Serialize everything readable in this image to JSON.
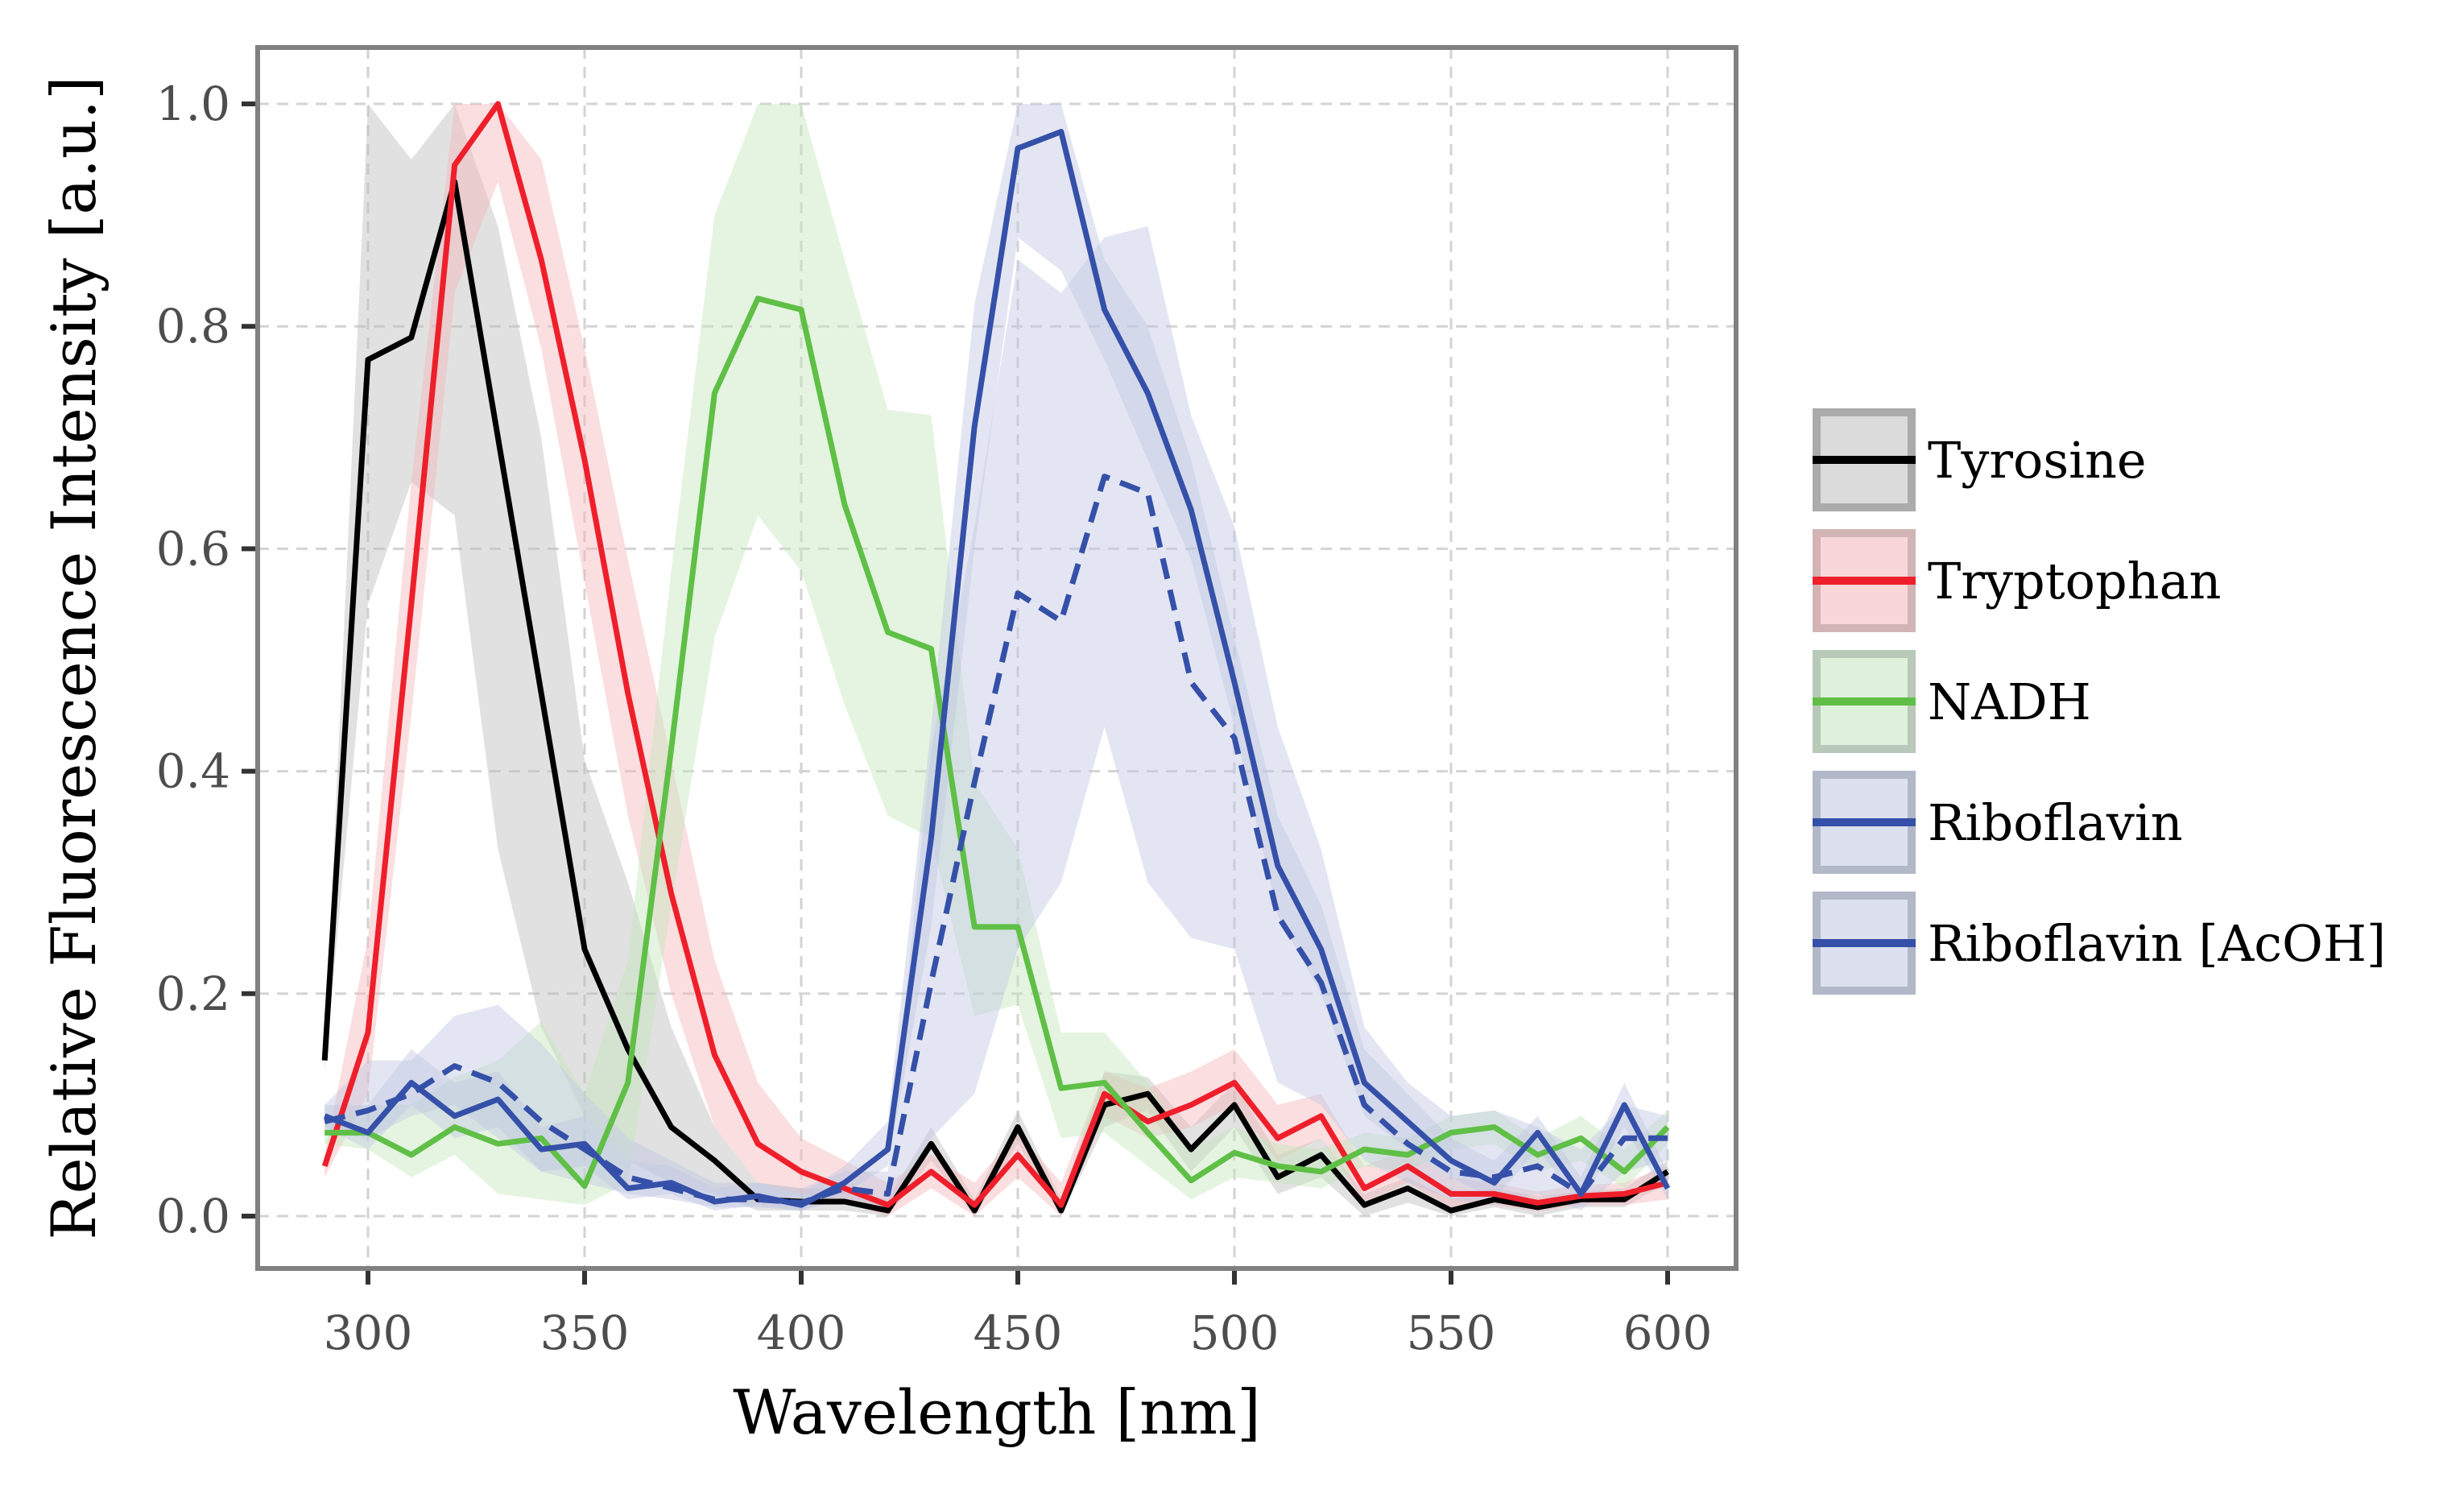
{
  "chart_data": {
    "type": "line",
    "title": "",
    "xlabel": "Wavelength [nm]",
    "ylabel": "Relative Fluorescence Intensity [a.u.]",
    "xlim": [
      275,
      615
    ],
    "ylim": [
      -0.047,
      1.053
    ],
    "xticks": [
      300,
      350,
      400,
      450,
      500,
      550,
      600
    ],
    "xtick_labels": [
      "300",
      "350",
      "400",
      "450",
      "500",
      "550",
      "600"
    ],
    "yticks": [
      0.0,
      0.2,
      0.4,
      0.6,
      0.8,
      1.0
    ],
    "ytick_labels": [
      "0.0",
      "0.2",
      "0.4",
      "0.6",
      "0.8",
      "1.0"
    ],
    "grid": true,
    "legend_position": "right",
    "x": [
      290,
      300,
      310,
      320,
      330,
      340,
      350,
      360,
      370,
      380,
      390,
      400,
      410,
      420,
      430,
      440,
      450,
      460,
      470,
      480,
      490,
      500,
      510,
      520,
      530,
      540,
      550,
      560,
      570,
      580,
      590,
      600
    ],
    "series": [
      {
        "name": "Tyrosine",
        "color": "#000000",
        "fill": "#bdbdbd",
        "fill_border": "#ababab",
        "dashed": false,
        "values": [
          0.14,
          0.77,
          0.79,
          0.93,
          0.7,
          0.47,
          0.24,
          0.15,
          0.08,
          0.05,
          0.015,
          0.013,
          0.013,
          0.005,
          0.065,
          0.005,
          0.08,
          0.005,
          0.1,
          0.11,
          0.06,
          0.1,
          0.035,
          0.055,
          0.01,
          0.025,
          0.005,
          0.015,
          0.008,
          0.015,
          0.015,
          0.04
        ],
        "upper": [
          0.15,
          1.0,
          0.95,
          1.0,
          0.89,
          0.7,
          0.41,
          0.3,
          0.17,
          0.08,
          0.03,
          0.025,
          0.025,
          0.015,
          0.08,
          0.015,
          0.095,
          0.015,
          0.13,
          0.125,
          0.08,
          0.12,
          0.055,
          0.07,
          0.02,
          0.035,
          0.015,
          0.025,
          0.018,
          0.022,
          0.025,
          0.05
        ],
        "lower": [
          0.13,
          0.55,
          0.66,
          0.63,
          0.33,
          0.17,
          0.09,
          0.05,
          0.03,
          0.02,
          0.005,
          0.005,
          0.005,
          0.0,
          0.05,
          0.0,
          0.065,
          0.0,
          0.08,
          0.095,
          0.04,
          0.08,
          0.02,
          0.035,
          0.0,
          0.012,
          0.0,
          0.008,
          0.0,
          0.008,
          0.008,
          0.03
        ]
      },
      {
        "name": "Tryptophan",
        "color": "#ee1f2b",
        "fill": "#f4b6ba",
        "fill_border": "#d2b4b4",
        "dashed": false,
        "values": [
          0.045,
          0.165,
          0.55,
          0.945,
          1.0,
          0.86,
          0.68,
          0.47,
          0.29,
          0.145,
          0.065,
          0.04,
          0.025,
          0.01,
          0.04,
          0.01,
          0.055,
          0.01,
          0.11,
          0.085,
          0.1,
          0.12,
          0.07,
          0.09,
          0.025,
          0.045,
          0.02,
          0.02,
          0.012,
          0.018,
          0.02,
          0.03
        ],
        "upper": [
          0.055,
          0.25,
          0.66,
          1.0,
          1.0,
          0.95,
          0.78,
          0.59,
          0.41,
          0.23,
          0.12,
          0.07,
          0.05,
          0.03,
          0.055,
          0.03,
          0.075,
          0.03,
          0.13,
          0.115,
          0.13,
          0.15,
          0.1,
          0.11,
          0.045,
          0.06,
          0.035,
          0.03,
          0.022,
          0.028,
          0.03,
          0.045
        ],
        "lower": [
          0.035,
          0.11,
          0.45,
          0.83,
          0.93,
          0.78,
          0.57,
          0.36,
          0.2,
          0.08,
          0.03,
          0.02,
          0.012,
          0.0,
          0.025,
          0.0,
          0.035,
          0.0,
          0.09,
          0.07,
          0.08,
          0.1,
          0.05,
          0.07,
          0.012,
          0.03,
          0.008,
          0.01,
          0.004,
          0.01,
          0.01,
          0.015
        ]
      },
      {
        "name": "NADH",
        "color": "#5fbf46",
        "fill": "#c3e6bb",
        "fill_border": "#b9c9b9",
        "dashed": false,
        "values": [
          0.075,
          0.075,
          0.055,
          0.08,
          0.065,
          0.07,
          0.027,
          0.12,
          0.42,
          0.74,
          0.825,
          0.815,
          0.64,
          0.525,
          0.51,
          0.26,
          0.26,
          0.115,
          0.12,
          0.075,
          0.032,
          0.057,
          0.045,
          0.04,
          0.06,
          0.055,
          0.075,
          0.08,
          0.055,
          0.07,
          0.04,
          0.08
        ],
        "upper": [
          0.085,
          0.1,
          0.1,
          0.125,
          0.14,
          0.175,
          0.11,
          0.23,
          0.58,
          0.9,
          1.0,
          1.0,
          0.86,
          0.725,
          0.72,
          0.39,
          0.33,
          0.165,
          0.165,
          0.12,
          0.06,
          0.08,
          0.065,
          0.06,
          0.075,
          0.07,
          0.09,
          0.095,
          0.07,
          0.09,
          0.06,
          0.095
        ],
        "lower": [
          0.065,
          0.06,
          0.035,
          0.055,
          0.02,
          0.015,
          0.01,
          0.03,
          0.28,
          0.52,
          0.63,
          0.58,
          0.46,
          0.36,
          0.34,
          0.18,
          0.19,
          0.07,
          0.075,
          0.045,
          0.015,
          0.035,
          0.03,
          0.025,
          0.045,
          0.04,
          0.06,
          0.065,
          0.04,
          0.05,
          0.025,
          0.065
        ]
      },
      {
        "name": "Riboflavin",
        "color": "#3550a8",
        "fill": "#c0c7e2",
        "fill_border": "#b3b8c8",
        "dashed": false,
        "values": [
          0.09,
          0.075,
          0.12,
          0.09,
          0.105,
          0.06,
          0.065,
          0.025,
          0.03,
          0.013,
          0.018,
          0.01,
          0.03,
          0.06,
          0.34,
          0.71,
          0.96,
          0.975,
          0.815,
          0.74,
          0.635,
          0.48,
          0.315,
          0.24,
          0.12,
          0.085,
          0.05,
          0.03,
          0.075,
          0.02,
          0.1,
          0.025
        ],
        "upper": [
          0.1,
          0.1,
          0.15,
          0.12,
          0.13,
          0.08,
          0.09,
          0.05,
          0.045,
          0.025,
          0.03,
          0.02,
          0.045,
          0.085,
          0.44,
          0.82,
          1.0,
          1.0,
          0.86,
          0.8,
          0.68,
          0.52,
          0.36,
          0.28,
          0.15,
          0.11,
          0.07,
          0.05,
          0.09,
          0.035,
          0.12,
          0.04
        ],
        "lower": [
          0.08,
          0.06,
          0.1,
          0.07,
          0.08,
          0.04,
          0.045,
          0.015,
          0.02,
          0.005,
          0.01,
          0.005,
          0.02,
          0.045,
          0.26,
          0.6,
          0.88,
          0.85,
          0.77,
          0.68,
          0.59,
          0.44,
          0.27,
          0.2,
          0.09,
          0.06,
          0.035,
          0.015,
          0.06,
          0.01,
          0.08,
          0.015
        ]
      },
      {
        "name": "Riboflavin [AcOH]",
        "color": "#3550a8",
        "fill": "#c0c7e2",
        "fill_border": "#b3b8c8",
        "dashed": true,
        "values": [
          0.085,
          0.095,
          0.11,
          0.135,
          0.12,
          0.085,
          0.06,
          0.035,
          0.025,
          0.015,
          0.015,
          0.012,
          0.025,
          0.02,
          0.21,
          0.39,
          0.56,
          0.535,
          0.665,
          0.65,
          0.48,
          0.43,
          0.27,
          0.21,
          0.1,
          0.065,
          0.04,
          0.035,
          0.045,
          0.02,
          0.07,
          0.07
        ],
        "upper": [
          0.1,
          0.14,
          0.14,
          0.18,
          0.19,
          0.155,
          0.11,
          0.07,
          0.05,
          0.03,
          0.03,
          0.025,
          0.04,
          0.04,
          0.42,
          0.62,
          0.86,
          0.83,
          0.88,
          0.89,
          0.72,
          0.62,
          0.44,
          0.33,
          0.17,
          0.12,
          0.09,
          0.095,
          0.08,
          0.06,
          0.1,
          0.09
        ],
        "lower": [
          0.075,
          0.07,
          0.09,
          0.1,
          0.07,
          0.04,
          0.03,
          0.02,
          0.015,
          0.008,
          0.008,
          0.005,
          0.015,
          0.005,
          0.07,
          0.11,
          0.24,
          0.3,
          0.44,
          0.3,
          0.25,
          0.24,
          0.12,
          0.1,
          0.05,
          0.03,
          0.015,
          0.01,
          0.02,
          0.005,
          0.04,
          0.05
        ]
      }
    ]
  },
  "legend": {
    "items": [
      {
        "label": "Tyrosine"
      },
      {
        "label": "Tryptophan"
      },
      {
        "label": "NADH"
      },
      {
        "label": "Riboflavin"
      },
      {
        "label": "Riboflavin [AcOH]"
      }
    ]
  }
}
